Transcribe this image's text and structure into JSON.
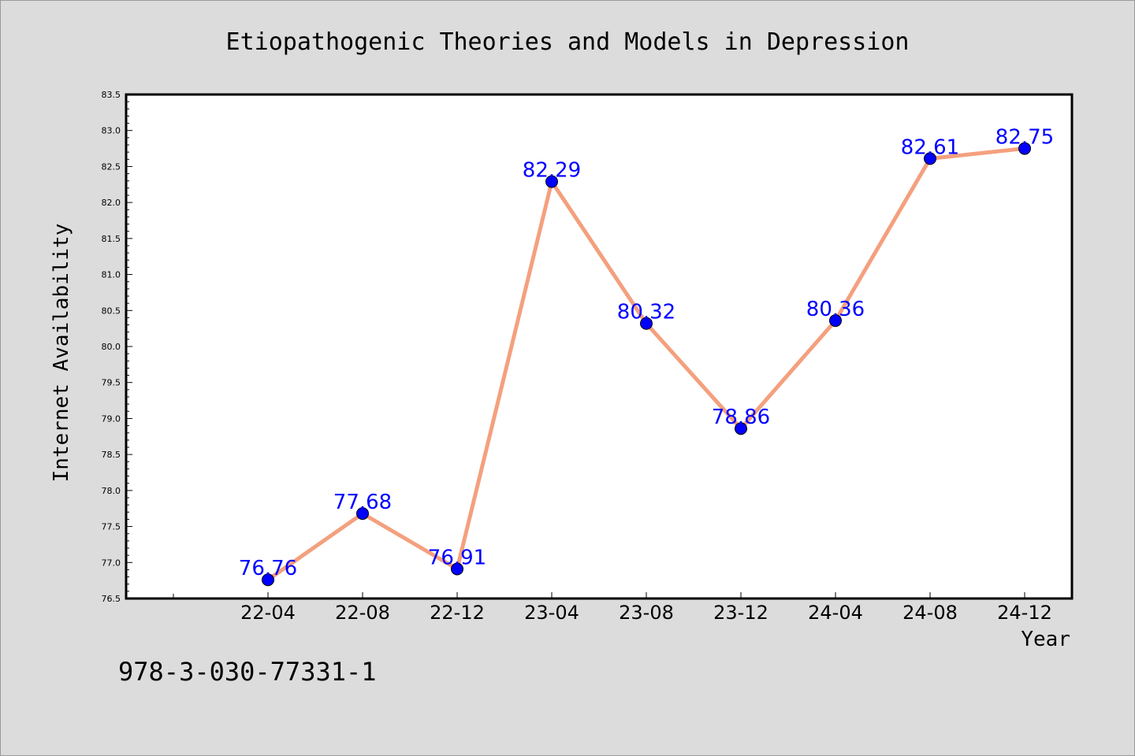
{
  "footer": {
    "code": "978-3-030-77331-1"
  },
  "colors": {
    "line": "#f4a07e",
    "marker": "#0000ff",
    "label": "#0000ff",
    "plot_bg": "#ffffff",
    "figure_bg": "#dcdcdc"
  },
  "chart_data": {
    "type": "line",
    "title": "Etiopathogenic Theories and Models in Depression",
    "xlabel": "Year",
    "ylabel": "Internet Availability",
    "x": [
      "22-04",
      "22-08",
      "22-12",
      "23-04",
      "23-08",
      "23-12",
      "24-04",
      "24-08",
      "24-12"
    ],
    "series": [
      {
        "values": [
          76.76,
          77.68,
          76.91,
          82.29,
          80.32,
          78.86,
          80.36,
          82.61,
          82.75
        ],
        "labels": [
          "76.76",
          "77.68",
          "76.91",
          "82.29",
          "80.32",
          "78.86",
          "80.36",
          "82.61",
          "82.75"
        ]
      }
    ],
    "ylim": [
      76.5,
      83.5
    ],
    "yticks": [
      "76.5",
      "77.0",
      "77.5",
      "78.0",
      "78.5",
      "79.0",
      "79.5",
      "80.0",
      "80.5",
      "81.0",
      "81.5",
      "82.0",
      "82.5",
      "83.0",
      "83.5"
    ],
    "grid": false,
    "legend": "none"
  }
}
